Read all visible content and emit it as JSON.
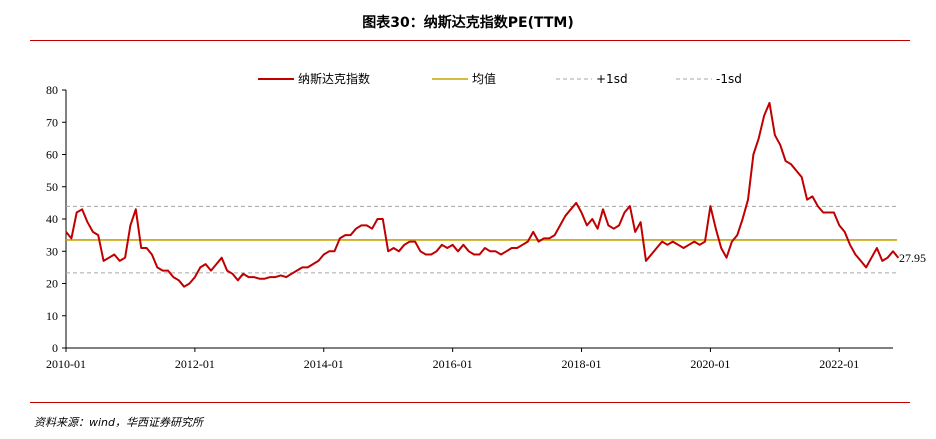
{
  "header": {
    "title": "图表30：纳斯达克指数PE(TTM)"
  },
  "footer": {
    "source": "资料来源：wind，华西证券研究所"
  },
  "colors": {
    "main": "#c00000",
    "mean": "#c8a400",
    "sd": "#a6a6a6",
    "rule": "#c00000"
  },
  "chart_data": {
    "type": "line",
    "title": "纳斯达克指数PE(TTM)",
    "xlabel": "",
    "ylabel": "",
    "xlim": [
      "2010-01",
      "2022-11"
    ],
    "ylim": [
      0,
      80
    ],
    "yticks": [
      0,
      10,
      20,
      30,
      40,
      50,
      60,
      70,
      80
    ],
    "xticks": [
      "2010-01",
      "2012-01",
      "2014-01",
      "2016-01",
      "2018-01",
      "2020-01",
      "2022-01"
    ],
    "grid": false,
    "legend": "top",
    "series": [
      {
        "name": "纳斯达克指数",
        "color": "#c00000",
        "points": [
          [
            "2010-01",
            36
          ],
          [
            "2010-02",
            34
          ],
          [
            "2010-03",
            42
          ],
          [
            "2010-04",
            43
          ],
          [
            "2010-05",
            39
          ],
          [
            "2010-06",
            36
          ],
          [
            "2010-07",
            35
          ],
          [
            "2010-08",
            27
          ],
          [
            "2010-09",
            28
          ],
          [
            "2010-10",
            29
          ],
          [
            "2010-11",
            27
          ],
          [
            "2010-12",
            28
          ],
          [
            "2011-01",
            38
          ],
          [
            "2011-02",
            43
          ],
          [
            "2011-03",
            31
          ],
          [
            "2011-04",
            31
          ],
          [
            "2011-05",
            29
          ],
          [
            "2011-06",
            25
          ],
          [
            "2011-07",
            24
          ],
          [
            "2011-08",
            24
          ],
          [
            "2011-09",
            22
          ],
          [
            "2011-10",
            21
          ],
          [
            "2011-11",
            19
          ],
          [
            "2011-12",
            20
          ],
          [
            "2012-01",
            22
          ],
          [
            "2012-02",
            25
          ],
          [
            "2012-03",
            26
          ],
          [
            "2012-04",
            24
          ],
          [
            "2012-05",
            26
          ],
          [
            "2012-06",
            28
          ],
          [
            "2012-07",
            24
          ],
          [
            "2012-08",
            23
          ],
          [
            "2012-09",
            21
          ],
          [
            "2012-10",
            23
          ],
          [
            "2012-11",
            22
          ],
          [
            "2012-12",
            22
          ],
          [
            "2013-01",
            21.5
          ],
          [
            "2013-02",
            21.5
          ],
          [
            "2013-03",
            22
          ],
          [
            "2013-04",
            22
          ],
          [
            "2013-05",
            22.5
          ],
          [
            "2013-06",
            22
          ],
          [
            "2013-07",
            23
          ],
          [
            "2013-08",
            24
          ],
          [
            "2013-09",
            25
          ],
          [
            "2013-10",
            25
          ],
          [
            "2013-11",
            26
          ],
          [
            "2013-12",
            27
          ],
          [
            "2014-01",
            29
          ],
          [
            "2014-02",
            30
          ],
          [
            "2014-03",
            30
          ],
          [
            "2014-04",
            34
          ],
          [
            "2014-05",
            35
          ],
          [
            "2014-06",
            35
          ],
          [
            "2014-07",
            37
          ],
          [
            "2014-08",
            38
          ],
          [
            "2014-09",
            38
          ],
          [
            "2014-10",
            37
          ],
          [
            "2014-11",
            40
          ],
          [
            "2014-12",
            40
          ],
          [
            "2015-01",
            30
          ],
          [
            "2015-02",
            31
          ],
          [
            "2015-03",
            30
          ],
          [
            "2015-04",
            32
          ],
          [
            "2015-05",
            33
          ],
          [
            "2015-06",
            33
          ],
          [
            "2015-07",
            30
          ],
          [
            "2015-08",
            29
          ],
          [
            "2015-09",
            29
          ],
          [
            "2015-10",
            30
          ],
          [
            "2015-11",
            32
          ],
          [
            "2015-12",
            31
          ],
          [
            "2016-01",
            32
          ],
          [
            "2016-02",
            30
          ],
          [
            "2016-03",
            32
          ],
          [
            "2016-04",
            30
          ],
          [
            "2016-05",
            29
          ],
          [
            "2016-06",
            29
          ],
          [
            "2016-07",
            31
          ],
          [
            "2016-08",
            30
          ],
          [
            "2016-09",
            30
          ],
          [
            "2016-10",
            29
          ],
          [
            "2016-11",
            30
          ],
          [
            "2016-12",
            31
          ],
          [
            "2017-01",
            31
          ],
          [
            "2017-02",
            32
          ],
          [
            "2017-03",
            33
          ],
          [
            "2017-04",
            36
          ],
          [
            "2017-05",
            33
          ],
          [
            "2017-06",
            34
          ],
          [
            "2017-07",
            34
          ],
          [
            "2017-08",
            35
          ],
          [
            "2017-09",
            38
          ],
          [
            "2017-10",
            41
          ],
          [
            "2017-11",
            43
          ],
          [
            "2017-12",
            45
          ],
          [
            "2018-01",
            42
          ],
          [
            "2018-02",
            38
          ],
          [
            "2018-03",
            40
          ],
          [
            "2018-04",
            37
          ],
          [
            "2018-05",
            43
          ],
          [
            "2018-06",
            38
          ],
          [
            "2018-07",
            37
          ],
          [
            "2018-08",
            38
          ],
          [
            "2018-09",
            42
          ],
          [
            "2018-10",
            44
          ],
          [
            "2018-11",
            36
          ],
          [
            "2018-12",
            39
          ],
          [
            "2019-01",
            27
          ],
          [
            "2019-02",
            29
          ],
          [
            "2019-03",
            31
          ],
          [
            "2019-04",
            33
          ],
          [
            "2019-05",
            32
          ],
          [
            "2019-06",
            33
          ],
          [
            "2019-07",
            32
          ],
          [
            "2019-08",
            31
          ],
          [
            "2019-09",
            32
          ],
          [
            "2019-10",
            33
          ],
          [
            "2019-11",
            32
          ],
          [
            "2019-12",
            33
          ],
          [
            "2020-01",
            44
          ],
          [
            "2020-02",
            37
          ],
          [
            "2020-03",
            31
          ],
          [
            "2020-04",
            28
          ],
          [
            "2020-05",
            33
          ],
          [
            "2020-06",
            35
          ],
          [
            "2020-07",
            40
          ],
          [
            "2020-08",
            46
          ],
          [
            "2020-09",
            60
          ],
          [
            "2020-10",
            65
          ],
          [
            "2020-11",
            72
          ],
          [
            "2020-12",
            76
          ],
          [
            "2021-01",
            66
          ],
          [
            "2021-02",
            63
          ],
          [
            "2021-03",
            58
          ],
          [
            "2021-04",
            57
          ],
          [
            "2021-05",
            55
          ],
          [
            "2021-06",
            53
          ],
          [
            "2021-07",
            46
          ],
          [
            "2021-08",
            47
          ],
          [
            "2021-09",
            44
          ],
          [
            "2021-10",
            42
          ],
          [
            "2021-11",
            42
          ],
          [
            "2021-12",
            42
          ],
          [
            "2022-01",
            38
          ],
          [
            "2022-02",
            36
          ],
          [
            "2022-03",
            32
          ],
          [
            "2022-04",
            29
          ],
          [
            "2022-05",
            27
          ],
          [
            "2022-06",
            25
          ],
          [
            "2022-07",
            28
          ],
          [
            "2022-08",
            31
          ],
          [
            "2022-09",
            27
          ],
          [
            "2022-10",
            28
          ],
          [
            "2022-11",
            30
          ],
          [
            "2022-12",
            27.95
          ]
        ],
        "last_label": "27.95"
      },
      {
        "name": "均值",
        "color": "#c8a400",
        "value": 33.5
      },
      {
        "name": "+1sd",
        "color": "#a6a6a6",
        "value": 43.9,
        "dash": true
      },
      {
        "name": "-1sd",
        "color": "#a6a6a6",
        "value": 23.3,
        "dash": true
      }
    ]
  }
}
